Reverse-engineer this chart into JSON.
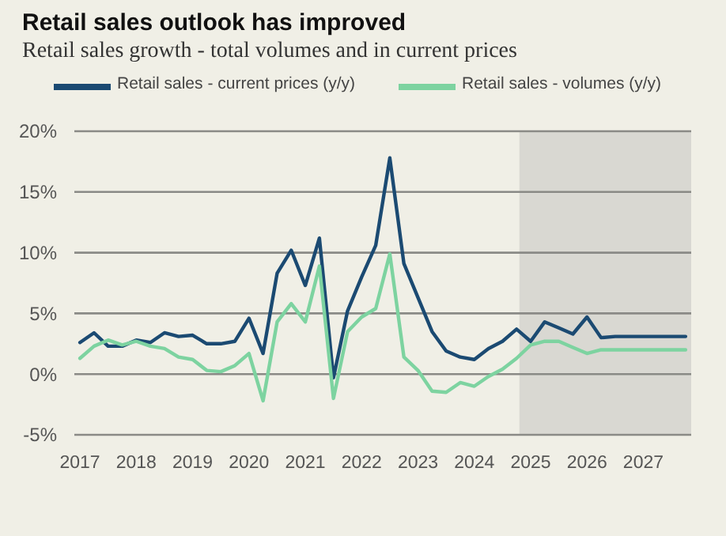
{
  "chart_data": {
    "type": "line",
    "title": "Retail sales outlook has improved",
    "subtitle": "Retail sales growth - total volumes and in current prices",
    "x": [
      2017,
      2017.25,
      2017.5,
      2017.75,
      2018,
      2018.25,
      2018.5,
      2018.75,
      2019,
      2019.25,
      2019.5,
      2019.75,
      2020,
      2020.25,
      2020.5,
      2020.75,
      2021,
      2021.25,
      2021.5,
      2021.75,
      2022,
      2022.25,
      2022.5,
      2022.75,
      2023,
      2023.25,
      2023.5,
      2023.75,
      2024,
      2024.25,
      2024.5,
      2024.75,
      2025,
      2025.25,
      2025.5,
      2025.75,
      2026,
      2026.25,
      2026.5,
      2026.75,
      2027,
      2027.25,
      2027.5,
      2027.75
    ],
    "series": [
      {
        "name": "Retail sales - current prices (y/y)",
        "color": "#1b4a72",
        "values": [
          2.6,
          3.4,
          2.3,
          2.3,
          2.8,
          2.6,
          3.4,
          3.1,
          3.2,
          2.5,
          2.5,
          2.7,
          4.6,
          1.7,
          8.3,
          10.2,
          7.3,
          11.2,
          -0.3,
          5.2,
          8.0,
          10.6,
          17.8,
          9.1,
          6.3,
          3.5,
          1.9,
          1.4,
          1.2,
          2.1,
          2.7,
          3.7,
          2.7,
          4.3,
          3.8,
          3.3,
          4.7,
          3.0,
          3.1,
          3.1,
          3.1,
          3.1,
          3.1,
          3.1
        ]
      },
      {
        "name": "Retail sales - volumes (y/y)",
        "color": "#7dd3a0",
        "values": [
          1.3,
          2.3,
          2.8,
          2.4,
          2.7,
          2.3,
          2.1,
          1.4,
          1.2,
          0.3,
          0.2,
          0.7,
          1.7,
          -2.2,
          4.3,
          5.8,
          4.3,
          8.9,
          -2.0,
          3.5,
          4.7,
          5.4,
          9.9,
          1.4,
          0.3,
          -1.4,
          -1.5,
          -0.7,
          -1.0,
          -0.2,
          0.4,
          1.3,
          2.4,
          2.7,
          2.7,
          2.2,
          1.7,
          2.0,
          2.0,
          2.0,
          2.0,
          2.0,
          2.0,
          2.0
        ]
      }
    ],
    "xlim": [
      2016.9,
      2027.85
    ],
    "xticks": [
      2017,
      2018,
      2019,
      2020,
      2021,
      2022,
      2023,
      2024,
      2025,
      2026,
      2027
    ],
    "ylim": [
      -5,
      20
    ],
    "yticks": [
      {
        "value": -5,
        "label": "-5%"
      },
      {
        "value": 0,
        "label": "0%"
      },
      {
        "value": 5,
        "label": "5%"
      },
      {
        "value": 10,
        "label": "10%"
      },
      {
        "value": 15,
        "label": "15%"
      },
      {
        "value": 20,
        "label": "20%"
      }
    ],
    "bands": [
      {
        "axis": "x",
        "from": 2024.8,
        "to": 2027.85,
        "color": "#d9d8d2"
      }
    ],
    "grid": "y",
    "legend": "top",
    "marker": "none",
    "line_style": "solid"
  }
}
